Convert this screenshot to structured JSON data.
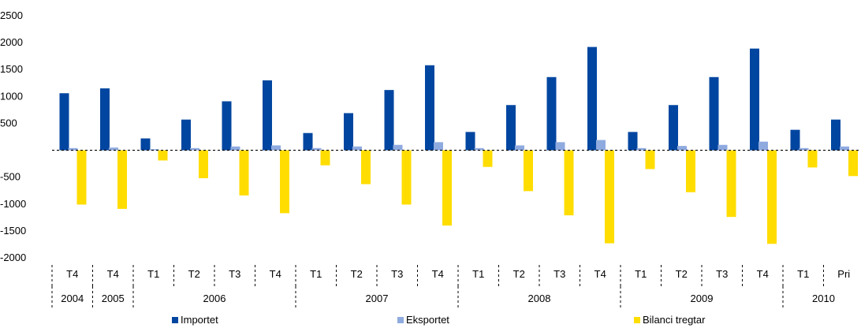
{
  "chart_data": {
    "type": "bar",
    "title": "",
    "xlabel": "",
    "ylabel": "",
    "ylim": [
      -2000,
      2500
    ],
    "yticks": [
      2500,
      2000,
      1500,
      1000,
      500,
      -500,
      -1000,
      -1500,
      -2000
    ],
    "grid": false,
    "legend_position": "bottom",
    "categories": [
      "T4",
      "T4",
      "T1",
      "T2",
      "T3",
      "T4",
      "T1",
      "T2",
      "T3",
      "T4",
      "T1",
      "T2",
      "T3",
      "T4",
      "T1",
      "T2",
      "T3",
      "T4",
      "T1",
      "Pri"
    ],
    "year_groups": [
      {
        "label": "2004",
        "count": 1
      },
      {
        "label": "2005",
        "count": 1
      },
      {
        "label": "2006",
        "count": 4
      },
      {
        "label": "2007",
        "count": 4
      },
      {
        "label": "2008",
        "count": 4
      },
      {
        "label": "2009",
        "count": 4
      },
      {
        "label": "2010",
        "count": 2
      }
    ],
    "series": [
      {
        "name": "Importet",
        "color": "#0046A0",
        "values": [
          1060,
          1150,
          220,
          570,
          910,
          1300,
          320,
          690,
          1120,
          1580,
          340,
          840,
          1360,
          1920,
          340,
          840,
          1360,
          1890,
          380,
          570
        ]
      },
      {
        "name": "Eksportet",
        "color": "#8FAADF",
        "values": [
          40,
          50,
          20,
          40,
          70,
          90,
          40,
          70,
          100,
          150,
          40,
          90,
          150,
          190,
          40,
          80,
          100,
          160,
          40,
          70
        ]
      },
      {
        "name": "Bilanci tregtar",
        "color": "#FFDD00",
        "values": [
          -1010,
          -1090,
          -190,
          -520,
          -840,
          -1170,
          -280,
          -630,
          -1010,
          -1400,
          -310,
          -760,
          -1210,
          -1730,
          -350,
          -780,
          -1240,
          -1740,
          -320,
          -480
        ]
      }
    ]
  }
}
